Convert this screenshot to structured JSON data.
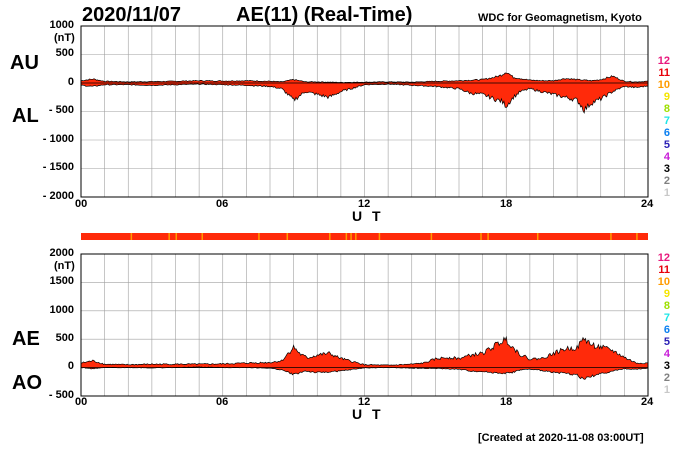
{
  "header": {
    "date": "2020/11/07",
    "title": "AE(11) (Real-Time)",
    "credit": "WDC for Geomagnetism, Kyoto",
    "created": "[Created at 2020-11-08 03:00UT]"
  },
  "legend": {
    "items": [
      {
        "label": "12",
        "color": "#e8197d"
      },
      {
        "label": "11",
        "color": "#e8000b"
      },
      {
        "label": "10",
        "color": "#ff9b00"
      },
      {
        "label": "9",
        "color": "#f5e500"
      },
      {
        "label": "8",
        "color": "#9ee000"
      },
      {
        "label": "7",
        "color": "#1ee6e6"
      },
      {
        "label": "6",
        "color": "#0a7ff0"
      },
      {
        "label": "5",
        "color": "#2a1fb5"
      },
      {
        "label": "4",
        "color": "#c81ed8"
      },
      {
        "label": "3",
        "color": "#000000"
      },
      {
        "label": "2",
        "color": "#808080"
      },
      {
        "label": "1",
        "color": "#c8c8c8"
      }
    ]
  },
  "colors": {
    "fill": "#ff2a0a",
    "outline": "#000000",
    "grid": "#a0a0a0"
  },
  "chart_data": [
    {
      "type": "area",
      "labels": {
        "upper": "AU",
        "lower": "AL",
        "unit": "(nT)",
        "xlabel": "U T"
      },
      "ylim": [
        -2000,
        1000
      ],
      "y_ticks": [
        "1000",
        "500",
        "0",
        "- 500",
        "- 1000",
        "- 1500",
        "- 2000"
      ],
      "x_ticks": [
        "00",
        "06",
        "12",
        "18",
        "24"
      ],
      "xlim": [
        0,
        24
      ],
      "grid": true,
      "series": [
        {
          "name": "AU",
          "x": [
            0,
            0.5,
            1,
            2,
            3,
            4,
            5,
            6,
            7,
            8,
            8.5,
            9,
            9.5,
            10,
            11,
            12,
            13,
            14,
            15,
            16,
            16.5,
            17,
            17.5,
            17.8,
            18,
            18.3,
            18.6,
            19,
            19.5,
            20,
            20.5,
            21,
            21.3,
            21.6,
            22,
            22.5,
            23,
            23.5,
            24
          ],
          "y": [
            40,
            70,
            30,
            20,
            25,
            30,
            40,
            35,
            40,
            30,
            20,
            60,
            20,
            20,
            10,
            15,
            20,
            15,
            30,
            40,
            50,
            60,
            100,
            140,
            200,
            100,
            80,
            50,
            40,
            40,
            80,
            60,
            50,
            40,
            60,
            120,
            30,
            20,
            30
          ]
        },
        {
          "name": "AL",
          "x": [
            0,
            0.5,
            1,
            2,
            3,
            4,
            5,
            6,
            7,
            8,
            8.5,
            9,
            9.5,
            10,
            10.5,
            11,
            12,
            13,
            14,
            15,
            16,
            16.5,
            17,
            17.5,
            17.8,
            18,
            18.3,
            18.6,
            19,
            19.5,
            20,
            20.5,
            21,
            21.3,
            21.6,
            22,
            22.5,
            23,
            23.5,
            24
          ],
          "y": [
            -40,
            -60,
            -30,
            -30,
            -40,
            -30,
            -20,
            -30,
            -40,
            -60,
            -100,
            -300,
            -150,
            -200,
            -250,
            -150,
            -30,
            -20,
            -40,
            -60,
            -100,
            -180,
            -200,
            -280,
            -320,
            -400,
            -250,
            -150,
            -100,
            -150,
            -200,
            -250,
            -300,
            -470,
            -350,
            -280,
            -150,
            -60,
            -80,
            -50
          ]
        }
      ]
    },
    {
      "type": "area",
      "labels": {
        "upper": "AE",
        "lower": "AO",
        "unit": "(nT)",
        "xlabel": "U T"
      },
      "ylim": [
        -500,
        2000
      ],
      "y_ticks": [
        "2000",
        "1500",
        "1000",
        "500",
        "0",
        "- 500"
      ],
      "x_ticks": [
        "00",
        "06",
        "12",
        "18",
        "24"
      ],
      "xlim": [
        0,
        24
      ],
      "grid": true,
      "series": [
        {
          "name": "AE",
          "x": [
            0,
            0.5,
            1,
            2,
            3,
            4,
            5,
            6,
            7,
            8,
            8.5,
            9,
            9.3,
            9.6,
            10,
            10.5,
            11,
            12,
            13,
            14,
            14.5,
            15,
            15.5,
            16,
            16.5,
            17,
            17.5,
            17.8,
            18,
            18.3,
            18.6,
            19,
            19.5,
            20,
            20.5,
            21,
            21.3,
            21.6,
            22,
            22.5,
            23,
            23.5,
            24
          ],
          "y": [
            80,
            120,
            60,
            50,
            60,
            60,
            60,
            65,
            80,
            90,
            120,
            360,
            230,
            170,
            220,
            250,
            160,
            50,
            40,
            60,
            80,
            150,
            180,
            160,
            220,
            250,
            380,
            460,
            500,
            350,
            230,
            150,
            160,
            250,
            330,
            350,
            520,
            400,
            360,
            300,
            180,
            80,
            80
          ]
        },
        {
          "name": "AO",
          "x": [
            0,
            0.5,
            1,
            2,
            3,
            4,
            5,
            6,
            7,
            8,
            8.5,
            9,
            9.5,
            10,
            11,
            12,
            13,
            14,
            15,
            16,
            16.5,
            17,
            17.5,
            18,
            18.3,
            18.6,
            19,
            19.5,
            20,
            20.5,
            21,
            21.3,
            21.6,
            22,
            22.5,
            23,
            23.5,
            24
          ],
          "y": [
            0,
            -20,
            0,
            0,
            -5,
            0,
            10,
            0,
            0,
            -10,
            -40,
            -120,
            -60,
            -90,
            -60,
            -5,
            0,
            -10,
            -15,
            -30,
            -60,
            -70,
            -90,
            -100,
            -80,
            -40,
            -30,
            -50,
            -80,
            -100,
            -130,
            -210,
            -150,
            -110,
            -60,
            -20,
            -30,
            -10
          ]
        }
      ]
    }
  ],
  "quality_bar": {
    "base_color": "#ff2a0a",
    "marks": [
      {
        "x": 2.1,
        "color": "#ff9b00"
      },
      {
        "x": 3.7,
        "color": "#ff9b00"
      },
      {
        "x": 4.0,
        "color": "#ff9b00"
      },
      {
        "x": 5.1,
        "color": "#ff9b00"
      },
      {
        "x": 7.5,
        "color": "#ff9b00"
      },
      {
        "x": 8.7,
        "color": "#ff9b00"
      },
      {
        "x": 10.5,
        "color": "#ff9b00"
      },
      {
        "x": 11.2,
        "color": "#ff9b00"
      },
      {
        "x": 11.4,
        "color": "#ff9b00"
      },
      {
        "x": 11.6,
        "color": "#ff9b00"
      },
      {
        "x": 12.6,
        "color": "#ff9b00"
      },
      {
        "x": 14.8,
        "color": "#ff9b00"
      },
      {
        "x": 16.9,
        "color": "#ff9b00"
      },
      {
        "x": 17.2,
        "color": "#ff9b00"
      },
      {
        "x": 19.3,
        "color": "#ff9b00"
      },
      {
        "x": 22.4,
        "color": "#ff9b00"
      },
      {
        "x": 23.5,
        "color": "#ff9b00"
      }
    ]
  }
}
